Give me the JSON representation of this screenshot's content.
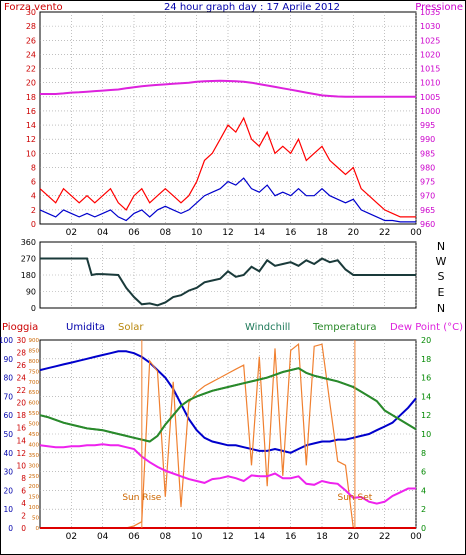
{
  "header": {
    "left_label": "Forza vento",
    "title": "24 hour graph day : 17 Aprile 2012",
    "right_label": "Pressione"
  },
  "x_ticks": [
    "02",
    "04",
    "06",
    "08",
    "10",
    "12",
    "14",
    "16",
    "18",
    "20",
    "22",
    "00"
  ],
  "wind_dir_labels": [
    "N",
    "W",
    "S",
    "E",
    "N"
  ],
  "bottom_labels": {
    "pioggia": "Pioggia",
    "umidita": "Umidita",
    "solar": "Solar",
    "windchill": "Windchill",
    "temperatura": "Temperatura",
    "dewpoint": "Dew Point (°C)",
    "sunrise": "Sun Rise",
    "sunset": "Sun Set"
  },
  "colors": {
    "wind_gust": "#ff0000",
    "wind_avg": "#0000cc",
    "pressure": "#dd22dd",
    "wind_dir": "#1a3a3a",
    "humidity": "#0000cc",
    "solar": "#f08030",
    "windchill": "#1f7a5a",
    "temperature": "#2a8a2a",
    "dewpoint": "#ee22ee",
    "rain": "#dd0000",
    "left_axis": "#cc0000",
    "right_axis_pressure": "#cc00cc",
    "right_axis_temp": "#008800",
    "rain_axis": "#cc0000",
    "humidity_axis": "#0000aa",
    "solar_axis": "#cc6600",
    "sun_line": "#f08030"
  },
  "chart_data": [
    {
      "type": "line",
      "name": "wind-pressure",
      "left_axis": {
        "label": "Forza vento",
        "ylim": [
          0,
          30
        ],
        "ticks": [
          0,
          2,
          4,
          6,
          8,
          10,
          12,
          14,
          16,
          18,
          20,
          22,
          24,
          26,
          28,
          30
        ]
      },
      "right_axis": {
        "label": "Pressione",
        "ylim": [
          960,
          1035
        ],
        "ticks": [
          960,
          965,
          970,
          975,
          980,
          985,
          990,
          995,
          1000,
          1005,
          1010,
          1015,
          1020,
          1025,
          1030,
          1035
        ]
      },
      "x_hours": [
        0,
        0.5,
        1,
        1.5,
        2,
        2.5,
        3,
        3.5,
        4,
        4.5,
        5,
        5.5,
        6,
        6.5,
        7,
        7.5,
        8,
        8.5,
        9,
        9.5,
        10,
        10.5,
        11,
        11.5,
        12,
        12.5,
        13,
        13.5,
        14,
        14.5,
        15,
        15.5,
        16,
        16.5,
        17,
        17.5,
        18,
        18.5,
        19,
        19.5,
        20,
        20.5,
        21,
        21.5,
        22,
        22.5,
        23,
        23.5,
        24
      ],
      "series": [
        {
          "name": "Forza vento",
          "values": [
            5,
            4,
            3,
            5,
            4,
            3,
            4,
            3,
            4,
            5,
            3,
            2,
            4,
            5,
            3,
            4,
            5,
            4,
            3,
            4,
            6,
            9,
            10,
            12,
            14,
            13,
            15,
            12,
            11,
            13,
            10,
            11,
            10,
            12,
            9,
            10,
            11,
            9,
            8,
            7,
            8,
            5,
            4,
            3,
            2,
            1.5,
            1,
            1,
            1
          ]
        },
        {
          "name": "Forza vento (media)",
          "values": [
            2,
            1.5,
            1,
            2,
            1.5,
            1,
            1.5,
            1,
            1.5,
            2,
            1,
            0.5,
            1.5,
            2,
            1,
            2,
            2.5,
            2,
            1.5,
            2,
            3,
            4,
            4.5,
            5,
            6,
            5.5,
            6.5,
            5,
            4.5,
            5.5,
            4,
            4.5,
            4,
            5,
            4,
            4,
            5,
            4,
            3.5,
            3,
            3.5,
            2,
            1.5,
            1,
            0.5,
            0.5,
            0.3,
            0.3,
            0.3
          ]
        },
        {
          "name": "Pressione",
          "axis": "right",
          "values": [
            1006,
            1006,
            1006,
            1006.2,
            1006.5,
            1006.6,
            1006.8,
            1007,
            1007.2,
            1007.4,
            1007.6,
            1008,
            1008.4,
            1008.7,
            1009,
            1009.2,
            1009.4,
            1009.6,
            1009.8,
            1010,
            1010.3,
            1010.5,
            1010.6,
            1010.7,
            1010.6,
            1010.5,
            1010.3,
            1010,
            1009.5,
            1009,
            1008.5,
            1008,
            1007.5,
            1007,
            1006.5,
            1006,
            1005.5,
            1005.3,
            1005.1,
            1005,
            1005,
            1005,
            1005,
            1005,
            1005,
            1005,
            1005,
            1005,
            1005
          ]
        }
      ]
    },
    {
      "type": "line",
      "name": "wind-direction",
      "ylim": [
        0,
        360
      ],
      "ticks": [
        0,
        90,
        180,
        270,
        360
      ],
      "x_hours": [
        0,
        1,
        2,
        3,
        3.3,
        3.6,
        4,
        5,
        5.5,
        6,
        6.5,
        7,
        7.5,
        8,
        8.5,
        9,
        9.5,
        10,
        10.5,
        11,
        11.5,
        12,
        12.5,
        13,
        13.5,
        14,
        14.5,
        15,
        15.5,
        16,
        16.5,
        17,
        17.5,
        18,
        18.5,
        19,
        19.5,
        20,
        21,
        22,
        23,
        24
      ],
      "series": [
        {
          "name": "Direzione vento",
          "values": [
            270,
            270,
            270,
            270,
            180,
            185,
            185,
            180,
            110,
            60,
            20,
            25,
            15,
            30,
            60,
            70,
            95,
            110,
            140,
            150,
            160,
            200,
            170,
            180,
            225,
            200,
            260,
            230,
            240,
            250,
            230,
            260,
            240,
            270,
            250,
            260,
            210,
            180,
            180,
            180,
            180,
            180
          ]
        }
      ]
    },
    {
      "type": "line",
      "name": "weather-multi",
      "axes": {
        "pioggia": {
          "label": "Pioggia",
          "ticks": [
            0,
            10,
            20,
            30,
            40,
            50,
            60,
            70,
            80,
            90,
            100
          ]
        },
        "umidita": {
          "label": "Umidita",
          "ylim": [
            0,
            30
          ],
          "ticks": [
            0,
            2,
            4,
            6,
            8,
            10,
            12,
            14,
            16,
            18,
            20,
            22,
            24,
            26,
            28,
            30
          ]
        },
        "solar": {
          "label": "Solar",
          "ylim": [
            0,
            900
          ],
          "ticks": [
            0,
            50,
            100,
            150,
            200,
            250,
            300,
            350,
            400,
            450,
            500,
            550,
            600,
            650,
            700,
            750,
            800,
            850,
            900
          ]
        },
        "temperatura": {
          "label": "Temperatura",
          "ylim": [
            0,
            20
          ],
          "ticks": [
            0,
            2,
            4,
            6,
            8,
            10,
            12,
            14,
            16,
            18,
            20
          ]
        }
      },
      "x_hours": [
        0,
        0.5,
        1,
        1.5,
        2,
        2.5,
        3,
        3.5,
        4,
        4.5,
        5,
        5.5,
        6,
        6.5,
        7,
        7.5,
        8,
        8.5,
        9,
        9.5,
        10,
        10.5,
        11,
        11.5,
        12,
        12.5,
        13,
        13.5,
        14,
        14.5,
        15,
        15.5,
        16,
        16.5,
        17,
        17.5,
        18,
        18.5,
        19,
        19.5,
        20,
        20.5,
        21,
        21.5,
        22,
        22.5,
        23,
        23.5,
        24
      ],
      "series": [
        {
          "name": "Umidita",
          "axis": "pioggia",
          "values": [
            84,
            85,
            86,
            87,
            88,
            89,
            90,
            91,
            92,
            93,
            94,
            94,
            93,
            91,
            88,
            84,
            80,
            74,
            66,
            58,
            52,
            48,
            46,
            45,
            44,
            44,
            43,
            42,
            41,
            41,
            42,
            41,
            40,
            42,
            44,
            45,
            46,
            46,
            47,
            47,
            48,
            49,
            50,
            52,
            54,
            56,
            60,
            64,
            69
          ]
        },
        {
          "name": "Solar",
          "axis": "solar",
          "values": [
            0,
            0,
            0,
            0,
            0,
            0,
            0,
            0,
            0,
            0,
            0,
            0,
            10,
            30,
            800,
            750,
            150,
            700,
            100,
            600,
            650,
            680,
            700,
            720,
            740,
            760,
            780,
            300,
            820,
            200,
            860,
            250,
            850,
            880,
            300,
            870,
            880,
            600,
            320,
            300,
            0,
            0,
            0,
            0,
            0,
            0,
            0,
            0,
            0
          ]
        },
        {
          "name": "Windchill",
          "axis": "temperatura",
          "values": [
            12,
            11.8,
            11.5,
            11.2,
            11,
            10.8,
            10.6,
            10.5,
            10.4,
            10.2,
            10,
            9.8,
            9.6,
            9.4,
            9.2,
            9.8,
            11,
            12,
            13,
            13.6,
            14,
            14.3,
            14.6,
            14.8,
            15,
            15.2,
            15.4,
            15.6,
            15.8,
            16,
            16.3,
            16.6,
            16.8,
            17,
            16.5,
            16.2,
            16,
            15.8,
            15.6,
            15.3,
            15,
            14.5,
            14,
            13.5,
            12.5,
            12,
            11.5,
            11,
            10.5
          ]
        },
        {
          "name": "Temperatura",
          "axis": "temperatura",
          "values": [
            12,
            11.8,
            11.5,
            11.2,
            11,
            10.8,
            10.6,
            10.5,
            10.4,
            10.2,
            10,
            9.8,
            9.6,
            9.4,
            9.2,
            9.8,
            11,
            12,
            13,
            13.6,
            14,
            14.3,
            14.6,
            14.8,
            15,
            15.2,
            15.4,
            15.6,
            15.8,
            16,
            16.3,
            16.6,
            16.8,
            17,
            16.5,
            16.2,
            16,
            15.8,
            15.6,
            15.3,
            15,
            14.5,
            14,
            13.5,
            12.5,
            12,
            11.5,
            11,
            10.5
          ]
        },
        {
          "name": "Dew Point",
          "axis": "temperatura",
          "values": [
            8.8,
            8.7,
            8.6,
            8.6,
            8.7,
            8.7,
            8.8,
            8.8,
            8.9,
            8.8,
            8.8,
            8.6,
            8.4,
            7.6,
            7,
            6.5,
            6.1,
            5.8,
            5.5,
            5.2,
            5,
            4.8,
            5.2,
            5.3,
            5.5,
            5.3,
            5,
            5.6,
            5.5,
            5.5,
            5.8,
            5.3,
            5.3,
            5.5,
            4.7,
            4.6,
            5,
            4.8,
            4.7,
            4,
            3.2,
            3.3,
            2.8,
            2.6,
            2.8,
            3.4,
            3.8,
            4.2,
            4.2
          ]
        },
        {
          "name": "Pioggia",
          "axis": "pioggia",
          "values": [
            0,
            0,
            0,
            0,
            0,
            0,
            0,
            0,
            0,
            0,
            0,
            0,
            0,
            0,
            0,
            0,
            0,
            0,
            0,
            0,
            0,
            0,
            0,
            0,
            0,
            0,
            0,
            0,
            0,
            0,
            0,
            0,
            0,
            0,
            0,
            0,
            0,
            0,
            0,
            0,
            0,
            0,
            0,
            0,
            0,
            0,
            0,
            0,
            0
          ]
        }
      ],
      "sunrise_hour": 6.5,
      "sunset_hour": 20.1
    }
  ]
}
